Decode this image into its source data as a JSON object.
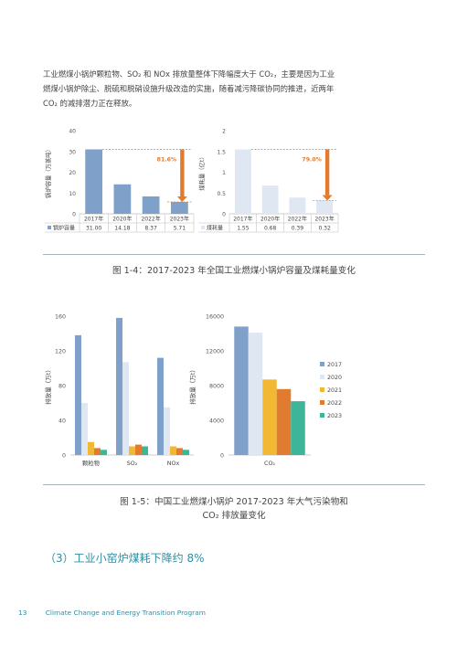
{
  "intro": {
    "line1": "工业燃煤小锅炉颗粒物、SO₂ 和 NOx 排放量整体下降幅度大于 CO₂，主要是因为工业",
    "line2": "燃煤小锅炉除尘、脱硫和脱硝设施升级改造的实施，随着减污降碳协同的推进，近两年",
    "line3": "CO₂ 的减排潜力正在释放。"
  },
  "figure_1_4": {
    "caption": "图 1-4：2017-2023 年全国工业燃煤小锅炉容量及煤耗量变化"
  },
  "figure_1_5": {
    "caption_line1": "图 1-5：中国工业燃煤小锅炉 2017-2023 年大气污染物和",
    "caption_line2": "CO₂ 排放量变化"
  },
  "section": {
    "heading": "（3）工业小窑炉煤耗下降约 8%"
  },
  "footer": {
    "page": "13",
    "text": "Climate Change and Energy Transition Program"
  },
  "colors": {
    "bar_blue": "#7fa1c9",
    "accent_orange": "#e07b2f",
    "rule": "#9fb4c0",
    "s2017": "#7fa1c9",
    "s2020": "#dfe7f3",
    "s2021": "#f2b733",
    "s2022": "#e07b2f",
    "s2023": "#3db598"
  },
  "chart_data": [
    {
      "type": "bar",
      "ylabel": "锅炉容量（万蒸吨）",
      "categories": [
        "2017年",
        "2020年",
        "2022年",
        "2023年"
      ],
      "ylim": [
        0,
        40
      ],
      "yticks": [
        "0",
        "10",
        "20",
        "30",
        "40"
      ],
      "series": [
        {
          "name": "锅炉容量",
          "values": [
            31.0,
            14.18,
            8.37,
            5.71
          ]
        }
      ],
      "table_values": [
        "31.00",
        "14.18",
        "8.37",
        "5.71"
      ],
      "annotation": "81.6%"
    },
    {
      "type": "bar",
      "ylabel": "煤耗量（亿t）",
      "categories": [
        "2017年",
        "2020年",
        "2022年",
        "2023年"
      ],
      "ylim": [
        0,
        2
      ],
      "yticks": [
        "0",
        "0.5",
        "1",
        "1.5",
        "2"
      ],
      "series": [
        {
          "name": "煤耗量",
          "values": [
            1.55,
            0.68,
            0.39,
            0.32
          ]
        }
      ],
      "table_values": [
        "1.55",
        "0.68",
        "0.39",
        "0.32"
      ],
      "annotation": "79.0%"
    },
    {
      "type": "bar",
      "ylabel": "排放量（万t）",
      "categories": [
        "颗粒物",
        "SO₂",
        "NOx"
      ],
      "ylim": [
        0,
        160
      ],
      "yticks": [
        "0",
        "40",
        "80",
        "120",
        "160"
      ],
      "series": [
        {
          "name": "2017",
          "values": [
            138,
            158,
            112
          ]
        },
        {
          "name": "2020",
          "values": [
            60,
            107,
            55
          ]
        },
        {
          "name": "2021",
          "values": [
            15,
            10,
            10
          ]
        },
        {
          "name": "2022",
          "values": [
            8,
            12,
            8
          ]
        },
        {
          "name": "2023",
          "values": [
            6,
            10,
            6
          ]
        }
      ]
    },
    {
      "type": "bar",
      "ylabel": "排放量（万t）",
      "categories": [
        "CO₂"
      ],
      "ylim": [
        0,
        16000
      ],
      "yticks": [
        "0",
        "4000",
        "8000",
        "12000",
        "16000"
      ],
      "series": [
        {
          "name": "2017",
          "values": [
            14800
          ]
        },
        {
          "name": "2020",
          "values": [
            14100
          ]
        },
        {
          "name": "2021",
          "values": [
            8700
          ]
        },
        {
          "name": "2022",
          "values": [
            7600
          ]
        },
        {
          "name": "2023",
          "values": [
            6200
          ]
        }
      ],
      "legend_labels": [
        "2017",
        "2020",
        "2021",
        "2022",
        "2023"
      ]
    }
  ]
}
